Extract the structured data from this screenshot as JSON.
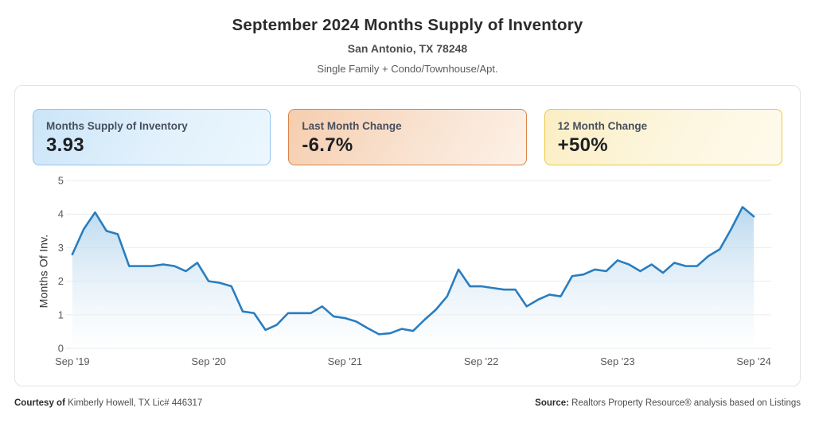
{
  "header": {
    "title": "September 2024 Months Supply of Inventory",
    "subtitle": "San Antonio, TX 78248",
    "property_types": "Single Family + Condo/Townhouse/Apt."
  },
  "stat_cards": [
    {
      "label": "Months Supply of Inventory",
      "value": "3.93",
      "accent": "#8fc3ee"
    },
    {
      "label": "Last Month Change",
      "value": "-6.7%",
      "accent": "#da8448"
    },
    {
      "label": "12 Month Change",
      "value": "+50%",
      "accent": "#e8ca3f"
    }
  ],
  "chart_data": {
    "type": "area",
    "title": "September 2024 Months Supply of Inventory",
    "ylabel": "Months Of Inv.",
    "xlabel": "",
    "ylim": [
      0,
      5
    ],
    "yticks": [
      0,
      1,
      2,
      3,
      4,
      5
    ],
    "grid": "horizontal-only",
    "legend": "none",
    "x_tick_labels": [
      "Sep '19",
      "Sep '20",
      "Sep '21",
      "Sep '22",
      "Sep '23",
      "Sep '24"
    ],
    "x_tick_indices": [
      0,
      12,
      24,
      36,
      48,
      60
    ],
    "categories": [
      "Sep '19",
      "Oct '19",
      "Nov '19",
      "Dec '19",
      "Jan '20",
      "Feb '20",
      "Mar '20",
      "Apr '20",
      "May '20",
      "Jun '20",
      "Jul '20",
      "Aug '20",
      "Sep '20",
      "Oct '20",
      "Nov '20",
      "Dec '20",
      "Jan '21",
      "Feb '21",
      "Mar '21",
      "Apr '21",
      "May '21",
      "Jun '21",
      "Jul '21",
      "Aug '21",
      "Sep '21",
      "Oct '21",
      "Nov '21",
      "Dec '21",
      "Jan '22",
      "Feb '22",
      "Mar '22",
      "Apr '22",
      "May '22",
      "Jun '22",
      "Jul '22",
      "Aug '22",
      "Sep '22",
      "Oct '22",
      "Nov '22",
      "Dec '22",
      "Jan '23",
      "Feb '23",
      "Mar '23",
      "Apr '23",
      "May '23",
      "Jun '23",
      "Jul '23",
      "Aug '23",
      "Sep '23",
      "Oct '23",
      "Nov '23",
      "Dec '23",
      "Jan '24",
      "Feb '24",
      "Mar '24",
      "Apr '24",
      "May '24",
      "Jun '24",
      "Jul '24",
      "Aug '24",
      "Sep '24"
    ],
    "values": [
      2.8,
      3.55,
      4.05,
      3.5,
      3.4,
      2.45,
      2.45,
      2.45,
      2.5,
      2.45,
      2.3,
      2.55,
      2.0,
      1.95,
      1.85,
      1.1,
      1.05,
      0.55,
      0.7,
      1.05,
      1.05,
      1.05,
      1.25,
      0.95,
      0.9,
      0.8,
      0.6,
      0.42,
      0.45,
      0.58,
      0.52,
      0.85,
      1.15,
      1.55,
      2.35,
      1.85,
      1.85,
      1.8,
      1.75,
      1.75,
      1.25,
      1.45,
      1.6,
      1.55,
      2.15,
      2.2,
      2.35,
      2.3,
      2.62,
      2.5,
      2.3,
      2.5,
      2.25,
      2.55,
      2.45,
      2.45,
      2.75,
      2.95,
      3.55,
      4.21,
      3.93
    ],
    "line_color": "#2a7dbf",
    "grid_color": "#ebebeb",
    "area_fill_top": "#a9cfeb",
    "area_fill_top_opacity": "0.8",
    "area_fill_bottom": "#fbfdfe",
    "area_fill_bottom_opacity": "0.35"
  },
  "footer": {
    "courtesy_label": "Courtesy of",
    "courtesy_text": " Kimberly Howell, TX Lic# 446317",
    "source_label": "Source:",
    "source_text": " Realtors Property Resource® analysis based on Listings"
  }
}
